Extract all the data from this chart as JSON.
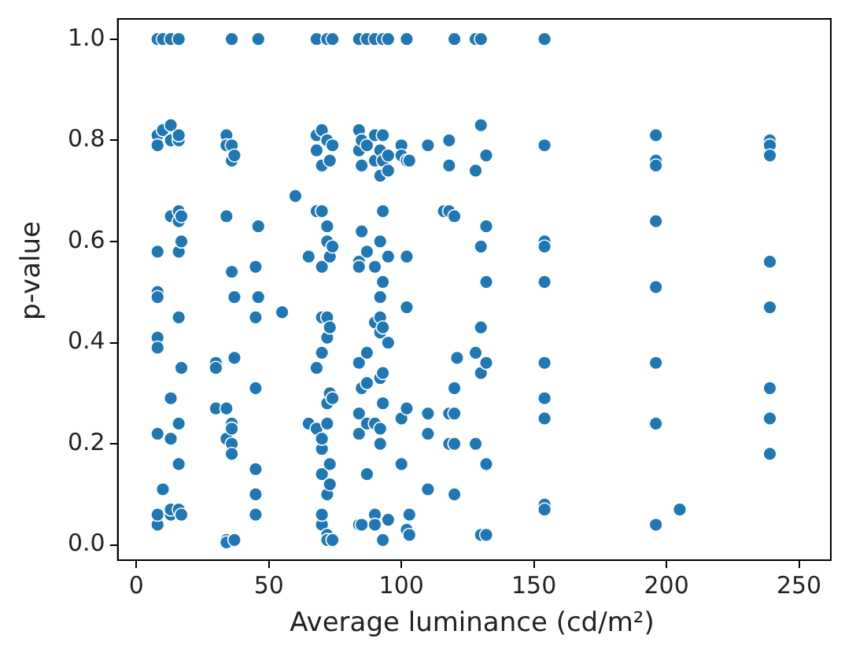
{
  "chart_data": {
    "type": "scatter",
    "xlabel": "Average luminance (cd/m²)",
    "ylabel": "p-value",
    "xlim": [
      -7,
      262
    ],
    "ylim": [
      -0.03,
      1.04
    ],
    "xticks": [
      0,
      50,
      100,
      150,
      200,
      250
    ],
    "yticks": [
      {
        "value": 0,
        "label": "0.0"
      },
      {
        "value": 0.2,
        "label": "0.2"
      },
      {
        "value": 0.4,
        "label": "0.4"
      },
      {
        "value": 0.6,
        "label": "0.6"
      },
      {
        "value": 0.8,
        "label": "0.8"
      },
      {
        "value": 1,
        "label": "1.0"
      }
    ],
    "grid": false,
    "legend": false,
    "marker": "circle",
    "series": [
      {
        "color": "#1f77b4",
        "x": [
          8,
          8,
          8,
          8,
          8,
          8,
          8,
          8,
          8,
          8,
          8,
          10,
          10,
          10,
          13,
          13,
          13,
          13,
          13,
          13,
          13,
          13,
          16,
          16,
          16,
          16,
          16,
          16,
          16,
          16,
          16,
          16,
          17,
          17,
          17,
          17,
          30,
          30,
          30,
          34,
          34,
          34,
          34,
          34,
          34,
          34,
          36,
          36,
          36,
          36,
          36,
          36,
          36,
          36,
          37,
          37,
          37,
          37,
          45,
          45,
          45,
          45,
          45,
          45,
          46,
          46,
          46,
          55,
          60,
          65,
          65,
          68,
          68,
          68,
          68,
          68,
          68,
          70,
          70,
          70,
          70,
          70,
          70,
          70,
          70,
          70,
          70,
          70,
          72,
          72,
          72,
          72,
          72,
          72,
          72,
          72,
          72,
          72,
          72,
          73,
          73,
          73,
          73,
          73,
          73,
          74,
          74,
          74,
          74,
          74,
          84,
          84,
          84,
          84,
          84,
          84,
          84,
          84,
          84,
          85,
          85,
          85,
          85,
          85,
          87,
          87,
          87,
          87,
          87,
          87,
          87,
          90,
          90,
          90,
          90,
          90,
          90,
          90,
          90,
          92,
          92,
          92,
          92,
          92,
          92,
          92,
          92,
          92,
          93,
          93,
          93,
          93,
          93,
          93,
          93,
          93,
          93,
          95,
          95,
          95,
          95,
          95,
          95,
          100,
          100,
          100,
          100,
          102,
          102,
          102,
          102,
          102,
          102,
          103,
          103,
          103,
          110,
          110,
          110,
          110,
          116,
          118,
          118,
          118,
          118,
          118,
          120,
          120,
          120,
          120,
          120,
          120,
          121,
          128,
          128,
          128,
          128,
          130,
          130,
          130,
          130,
          130,
          130,
          132,
          132,
          132,
          132,
          132,
          132,
          154,
          154,
          154,
          154,
          154,
          154,
          154,
          154,
          154,
          154,
          196,
          196,
          196,
          196,
          196,
          196,
          196,
          196,
          205,
          239,
          239,
          239,
          239,
          239,
          239,
          239,
          239
        ],
        "values": [
          1.0,
          0.81,
          0.79,
          0.58,
          0.5,
          0.49,
          0.41,
          0.39,
          0.22,
          0.04,
          0.06,
          1.0,
          0.82,
          0.11,
          1.0,
          0.83,
          0.8,
          0.65,
          0.29,
          0.21,
          0.06,
          0.07,
          1.0,
          0.8,
          0.81,
          0.66,
          0.64,
          0.58,
          0.45,
          0.24,
          0.16,
          0.07,
          0.65,
          0.6,
          0.35,
          0.06,
          0.36,
          0.35,
          0.27,
          0.81,
          0.79,
          0.65,
          0.27,
          0.21,
          0.01,
          0.005,
          1.0,
          0.79,
          0.76,
          0.54,
          0.24,
          0.2,
          0.18,
          0.23,
          0.77,
          0.49,
          0.37,
          0.01,
          0.55,
          0.45,
          0.31,
          0.15,
          0.1,
          0.06,
          1.0,
          0.63,
          0.49,
          0.46,
          0.69,
          0.57,
          0.24,
          1.0,
          0.81,
          0.78,
          0.66,
          0.23,
          0.35,
          0.82,
          0.75,
          0.66,
          0.55,
          0.45,
          0.38,
          0.19,
          0.21,
          0.14,
          0.04,
          0.06,
          1.0,
          0.8,
          0.63,
          0.6,
          0.45,
          0.41,
          0.24,
          0.28,
          0.02,
          0.01,
          0.1,
          0.76,
          0.57,
          0.43,
          0.3,
          0.16,
          0.12,
          1.0,
          0.79,
          0.59,
          0.29,
          0.01,
          1.0,
          0.82,
          0.78,
          0.56,
          0.55,
          0.36,
          0.26,
          0.22,
          0.04,
          0.8,
          0.75,
          0.62,
          0.31,
          0.04,
          1.0,
          0.79,
          0.58,
          0.32,
          0.38,
          0.24,
          0.14,
          1.0,
          0.81,
          0.76,
          0.55,
          0.44,
          0.24,
          0.06,
          0.04,
          0.78,
          0.73,
          0.6,
          0.49,
          0.45,
          0.42,
          0.33,
          0.23,
          0.2,
          1.0,
          0.81,
          0.76,
          0.66,
          0.52,
          0.43,
          0.28,
          0.34,
          0.01,
          1.0,
          0.77,
          0.74,
          0.57,
          0.4,
          0.05,
          0.79,
          0.77,
          0.25,
          0.16,
          1.0,
          0.76,
          0.57,
          0.47,
          0.27,
          0.03,
          0.76,
          0.06,
          0.02,
          0.79,
          0.26,
          0.22,
          0.11,
          0.66,
          0.8,
          0.75,
          0.66,
          0.26,
          0.2,
          1.0,
          0.65,
          0.31,
          0.26,
          0.2,
          0.1,
          0.37,
          1.0,
          0.74,
          0.38,
          0.2,
          1.0,
          0.83,
          0.59,
          0.43,
          0.34,
          0.02,
          0.77,
          0.63,
          0.52,
          0.36,
          0.16,
          0.02,
          1.0,
          0.79,
          0.6,
          0.59,
          0.52,
          0.36,
          0.29,
          0.25,
          0.08,
          0.07,
          0.81,
          0.76,
          0.75,
          0.64,
          0.51,
          0.36,
          0.24,
          0.04,
          0.07,
          0.8,
          0.79,
          0.77,
          0.56,
          0.47,
          0.31,
          0.25,
          0.18
        ]
      }
    ]
  }
}
